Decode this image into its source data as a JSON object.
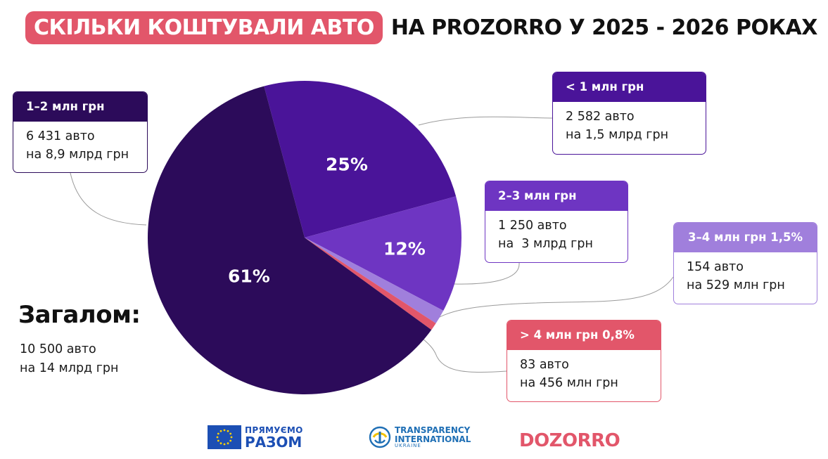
{
  "title": {
    "highlight": "СКІЛЬКИ КОШТУВАЛИ АВТО",
    "rest": "НА PROZORRO У 2025 - 2026 РОКАХ"
  },
  "chart_data": {
    "type": "pie",
    "title": "СКІЛЬКИ КОШТУВАЛИ АВТО НА PROZORRO У 2025 - 2026 РОКАХ",
    "slices": [
      {
        "key": "lt1",
        "label": "< 1 млн грн",
        "value": 25,
        "value_label": "25%",
        "color": "#4a1499",
        "count_text": "2 582 авто",
        "sum_text": "на 1,5 млрд грн"
      },
      {
        "key": "m23",
        "label": "2–3  млн грн",
        "value": 12,
        "value_label": "12%",
        "color": "#6e35c2",
        "count_text": "1 250 авто",
        "sum_text": "на  3 млрд грн"
      },
      {
        "key": "m34",
        "label": "3–4 млн грн 1,5%",
        "value": 1.5,
        "value_label": "",
        "color": "#a07fdc",
        "count_text": "154 авто",
        "sum_text": "на 529 млн грн"
      },
      {
        "key": "gt4",
        "label": "> 4 млн грн 0,8%",
        "value": 0.8,
        "value_label": "",
        "color": "#e2566a",
        "count_text": "83 авто",
        "sum_text": "на 456 млн грн"
      },
      {
        "key": "m12",
        "label": "1–2 млн грн",
        "value": 61,
        "value_label": "61%",
        "color": "#2c0b5a",
        "count_text": "6 431 авто",
        "sum_text": "на 8,9 млрд грн"
      }
    ],
    "legend": "callouts",
    "total": {
      "title": "Загалом:",
      "count_text": "10 500 авто",
      "sum_text": "на 14 млрд грн"
    }
  },
  "logos": {
    "eu": {
      "line1": "ПРЯМУЄМО",
      "line2": "РАЗОМ",
      "flag_color": "#1c4fb4"
    },
    "ti": {
      "line1": "TRANSPARENCY",
      "line2": "INTERNATIONAL",
      "line3": "UKRAINE"
    },
    "dozorro": {
      "text": "DOZORRO"
    }
  }
}
